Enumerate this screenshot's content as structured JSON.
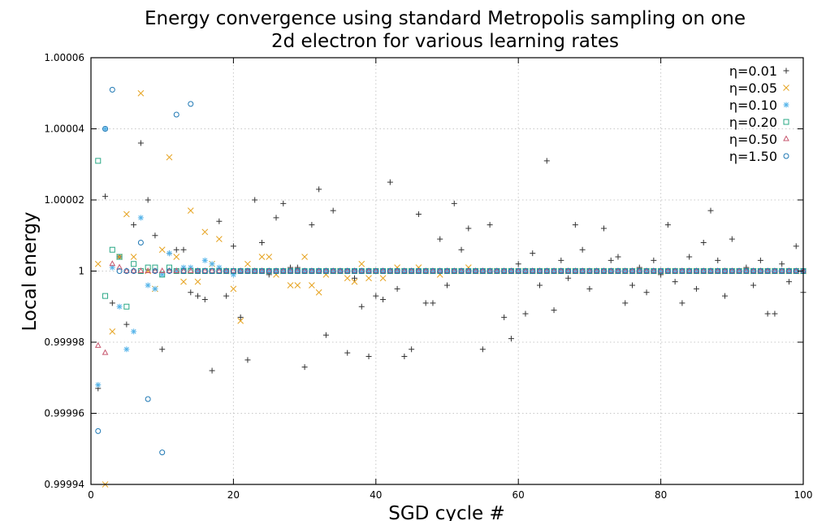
{
  "chart_data": {
    "type": "scatter",
    "title_lines": [
      "Energy convergence using standard Metropolis sampling on one",
      "2d electron for various learning rates"
    ],
    "xlabel": "SGD cycle #",
    "ylabel": "Local energy",
    "xlim": [
      0,
      100
    ],
    "ylim": [
      0.99994,
      1.00006
    ],
    "xticks": [
      0,
      20,
      40,
      60,
      80,
      100
    ],
    "xtick_labels": [
      "0",
      "20",
      "40",
      "60",
      "80",
      "100"
    ],
    "yticks": [
      0.99994,
      0.99996,
      0.99998,
      1.0,
      1.00002,
      1.00004,
      1.00006
    ],
    "ytick_labels": [
      "0.99994",
      "0.99996",
      "0.99998",
      "1",
      "1.00002",
      "1.00004",
      "1.00006"
    ],
    "grid": true,
    "legend_position": "top-right",
    "series": [
      {
        "name": "η=0.01",
        "marker": "plus",
        "color": "#333333",
        "x": [
          1,
          2,
          3,
          4,
          5,
          6,
          7,
          8,
          9,
          10,
          11,
          12,
          13,
          14,
          15,
          16,
          17,
          18,
          19,
          20,
          21,
          22,
          23,
          24,
          25,
          26,
          27,
          28,
          29,
          30,
          31,
          32,
          33,
          34,
          35,
          36,
          37,
          38,
          39,
          40,
          41,
          42,
          43,
          44,
          45,
          46,
          47,
          48,
          49,
          50,
          51,
          52,
          53,
          54,
          55,
          56,
          57,
          58,
          59,
          60,
          61,
          62,
          63,
          64,
          65,
          66,
          67,
          68,
          69,
          70,
          71,
          72,
          73,
          74,
          75,
          76,
          77,
          78,
          79,
          80,
          81,
          82,
          83,
          84,
          85,
          86,
          87,
          88,
          89,
          90,
          91,
          92,
          93,
          94,
          95,
          96,
          97,
          98,
          99,
          100
        ],
        "y": [
          0.999967,
          1.000021,
          0.999991,
          1.000004,
          0.999985,
          1.000013,
          1.000036,
          1.00002,
          1.00001,
          0.999978,
          1.000005,
          1.000006,
          1.000006,
          0.999994,
          0.999993,
          0.999992,
          0.999972,
          1.000014,
          0.999993,
          1.000007,
          0.999987,
          0.999975,
          1.00002,
          1.000008,
          0.999999,
          1.000015,
          1.000019,
          1.000001,
          1.000001,
          0.999973,
          1.000013,
          1.000023,
          0.999982,
          1.000017,
          1.0,
          0.999977,
          0.999998,
          0.99999,
          0.999976,
          0.999993,
          0.999992,
          1.000025,
          0.999995,
          0.999976,
          0.999978,
          1.000016,
          0.999991,
          0.999991,
          1.000009,
          0.999996,
          1.000019,
          1.000006,
          1.000012,
          1.0,
          0.999978,
          1.000013,
          1.0,
          0.999987,
          0.999981,
          1.000002,
          0.999988,
          1.000005,
          0.999996,
          1.000031,
          0.999989,
          1.000003,
          0.999998,
          1.000013,
          1.000006,
          0.999995,
          1.0,
          1.000012,
          1.000003,
          1.000004,
          0.999991,
          0.999996,
          1.000001,
          0.999994,
          1.000003,
          0.999999,
          1.000013,
          0.999997,
          0.999991,
          1.000004,
          0.999995,
          1.000008,
          1.000017,
          1.000003,
          0.999993,
          1.000009,
          1.0,
          1.000001,
          0.999996,
          1.000003,
          0.999988,
          0.999988,
          1.000002,
          0.999997,
          1.000007,
          0.999994
        ]
      },
      {
        "name": "η=0.05",
        "marker": "cross",
        "color": "#e6a321",
        "x": [
          1,
          2,
          3,
          4,
          5,
          6,
          7,
          8,
          9,
          10,
          11,
          12,
          13,
          14,
          15,
          16,
          17,
          18,
          19,
          20,
          21,
          22,
          23,
          24,
          25,
          26,
          27,
          28,
          29,
          30,
          31,
          32,
          33,
          34,
          35,
          36,
          37,
          38,
          39,
          40,
          41,
          42,
          43,
          44,
          45,
          46,
          47,
          48,
          49,
          50,
          51,
          52,
          53,
          54,
          55,
          56,
          57,
          58,
          59,
          60,
          61,
          62,
          63,
          64,
          65,
          66,
          67,
          68,
          69,
          70,
          71,
          72,
          73,
          74,
          75,
          76,
          77,
          78,
          79,
          80,
          81,
          82,
          83,
          84,
          85,
          86,
          87,
          88,
          89,
          90,
          91,
          92,
          93,
          94,
          95,
          96,
          97,
          98,
          99,
          100
        ],
        "y": [
          1.000002,
          0.99994,
          0.999983,
          1.000004,
          1.000016,
          1.000004,
          1.00005,
          1.0,
          0.999995,
          1.000006,
          1.000032,
          1.000004,
          0.999997,
          1.000017,
          0.999997,
          1.000011,
          1.000002,
          1.000009,
          1.0,
          0.999995,
          0.999986,
          1.000002,
          1.0,
          1.000004,
          1.000004,
          0.999999,
          1.0,
          0.999996,
          0.999996,
          1.000004,
          0.999996,
          0.999994,
          0.999999,
          1.0,
          1.0,
          0.999998,
          0.999997,
          1.000002,
          0.999998,
          1.0,
          0.999998,
          1.0,
          1.000001,
          1.0,
          1.0,
          1.000001,
          1.0,
          1.0,
          0.999999,
          1.0,
          1.0,
          1.0,
          1.000001,
          1.0,
          1.0,
          1.0,
          1.0,
          1.0,
          1.0,
          1.0,
          1.0,
          1.0,
          1.0,
          1.0,
          1.0,
          1.0,
          1.0,
          1.0,
          1.0,
          1.0,
          1.0,
          1.0,
          1.0,
          1.0,
          1.0,
          1.0,
          1.0,
          1.0,
          1.0,
          1.0,
          1.0,
          1.0,
          1.0,
          1.0,
          1.0,
          1.0,
          1.0,
          1.0,
          1.0,
          1.0,
          1.0,
          1.0,
          1.0,
          1.0,
          1.0,
          1.0,
          1.0,
          1.0,
          1.0,
          1.0
        ]
      },
      {
        "name": "η=0.10",
        "marker": "star",
        "color": "#56b4e9",
        "x": [
          1,
          2,
          3,
          4,
          5,
          6,
          7,
          8,
          9,
          10,
          11,
          12,
          13,
          14,
          15,
          16,
          17,
          18,
          19,
          20,
          21,
          22,
          23,
          24,
          25,
          26,
          27,
          28,
          29,
          30,
          31,
          32,
          33,
          34,
          35,
          36,
          37,
          38,
          39,
          40,
          41,
          42,
          43,
          44,
          45,
          46,
          47,
          48,
          49,
          50,
          51,
          52,
          53,
          54,
          55,
          56,
          57,
          58,
          59,
          60,
          61,
          62,
          63,
          64,
          65,
          66,
          67,
          68,
          69,
          70,
          71,
          72,
          73,
          74,
          75,
          76,
          77,
          78,
          79,
          80,
          81,
          82,
          83,
          84,
          85,
          86,
          87,
          88,
          89,
          90,
          91,
          92,
          93,
          94,
          95,
          96,
          97,
          98,
          99,
          100
        ],
        "y": [
          0.999968,
          1.00004,
          1.000001,
          0.99999,
          0.999978,
          0.999983,
          1.000015,
          0.999996,
          0.999995,
          0.999999,
          1.000005,
          1.0,
          1.000001,
          1.000001,
          1.0,
          1.000003,
          1.000002,
          1.000001,
          1.0,
          0.999999,
          1.0,
          1.0,
          1.0,
          1.0,
          1.0,
          1.0,
          1.0,
          1.0,
          1.0,
          1.0,
          1.0,
          1.0,
          1.0,
          1.0,
          1.0,
          1.0,
          1.0,
          1.0,
          1.0,
          1.0,
          1.0,
          1.0,
          1.0,
          1.0,
          1.0,
          1.0,
          1.0,
          1.0,
          1.0,
          1.0,
          1.0,
          1.0,
          1.0,
          1.0,
          1.0,
          1.0,
          1.0,
          1.0,
          1.0,
          1.0,
          1.0,
          1.0,
          1.0,
          1.0,
          1.0,
          1.0,
          1.0,
          1.0,
          1.0,
          1.0,
          1.0,
          1.0,
          1.0,
          1.0,
          1.0,
          1.0,
          1.0,
          1.0,
          1.0,
          1.0,
          1.0,
          1.0,
          1.0,
          1.0,
          1.0,
          1.0,
          1.0,
          1.0,
          1.0,
          1.0,
          1.0,
          1.0,
          1.0,
          1.0,
          1.0,
          1.0,
          1.0,
          1.0,
          1.0,
          1.0
        ]
      },
      {
        "name": "η=0.20",
        "marker": "square",
        "color": "#2aa886",
        "x": [
          1,
          2,
          3,
          4,
          5,
          6,
          7,
          8,
          9,
          10,
          11,
          12,
          13,
          14,
          15,
          16,
          17,
          18,
          19,
          20,
          21,
          22,
          23,
          24,
          25,
          26,
          27,
          28,
          29,
          30,
          31,
          32,
          33,
          34,
          35,
          36,
          37,
          38,
          39,
          40,
          41,
          42,
          43,
          44,
          45,
          46,
          47,
          48,
          49,
          50,
          51,
          52,
          53,
          54,
          55,
          56,
          57,
          58,
          59,
          60,
          61,
          62,
          63,
          64,
          65,
          66,
          67,
          68,
          69,
          70,
          71,
          72,
          73,
          74,
          75,
          76,
          77,
          78,
          79,
          80,
          81,
          82,
          83,
          84,
          85,
          86,
          87,
          88,
          89,
          90,
          91,
          92,
          93,
          94,
          95,
          96,
          97,
          98,
          99,
          100
        ],
        "y": [
          1.000031,
          0.999993,
          1.000006,
          1.000004,
          0.99999,
          1.000002,
          1.0,
          1.000001,
          1.000001,
          0.999999,
          1.000001,
          1.0,
          1.0,
          1.0,
          1.0,
          1.0,
          1.0,
          1.0,
          1.0,
          1.0,
          1.0,
          1.0,
          1.0,
          1.0,
          1.0,
          1.0,
          1.0,
          1.0,
          1.0,
          1.0,
          1.0,
          1.0,
          1.0,
          1.0,
          1.0,
          1.0,
          1.0,
          1.0,
          1.0,
          1.0,
          1.0,
          1.0,
          1.0,
          1.0,
          1.0,
          1.0,
          1.0,
          1.0,
          1.0,
          1.0,
          1.0,
          1.0,
          1.0,
          1.0,
          1.0,
          1.0,
          1.0,
          1.0,
          1.0,
          1.0,
          1.0,
          1.0,
          1.0,
          1.0,
          1.0,
          1.0,
          1.0,
          1.0,
          1.0,
          1.0,
          1.0,
          1.0,
          1.0,
          1.0,
          1.0,
          1.0,
          1.0,
          1.0,
          1.0,
          1.0,
          1.0,
          1.0,
          1.0,
          1.0,
          1.0,
          1.0,
          1.0,
          1.0,
          1.0,
          1.0,
          1.0,
          1.0,
          1.0,
          1.0,
          1.0,
          1.0,
          1.0,
          1.0,
          1.0,
          1.0
        ]
      },
      {
        "name": "η=0.50",
        "marker": "triangle",
        "color": "#c7576f",
        "x": [
          1,
          2,
          3,
          4,
          5,
          6,
          7,
          8,
          9,
          10,
          11,
          12,
          13,
          14,
          15,
          16,
          17,
          18,
          19,
          20,
          21,
          22,
          23,
          24,
          25,
          26,
          27,
          28,
          29,
          30,
          31,
          32,
          33,
          34,
          35,
          36,
          37,
          38,
          39,
          40,
          41,
          42,
          43,
          44,
          45,
          46,
          47,
          48,
          49,
          50,
          51,
          52,
          53,
          54,
          55,
          56,
          57,
          58,
          59,
          60,
          61,
          62,
          63,
          64,
          65,
          66,
          67,
          68,
          69,
          70,
          71,
          72,
          73,
          74,
          75,
          76,
          77,
          78,
          79,
          80,
          81,
          82,
          83,
          84,
          85,
          86,
          87,
          88,
          89,
          90,
          91,
          92,
          93,
          94,
          95,
          96,
          97,
          98,
          99,
          100
        ],
        "y": [
          0.999979,
          0.999977,
          1.000002,
          1.000001,
          1.0,
          1.0,
          1.0,
          1.0,
          1.0,
          1.0,
          1.0,
          1.0,
          1.0,
          1.0,
          1.0,
          1.0,
          1.0,
          1.0,
          1.0,
          1.0,
          1.0,
          1.0,
          1.0,
          1.0,
          1.0,
          1.0,
          1.0,
          1.0,
          1.0,
          1.0,
          1.0,
          1.0,
          1.0,
          1.0,
          1.0,
          1.0,
          1.0,
          1.0,
          1.0,
          1.0,
          1.0,
          1.0,
          1.0,
          1.0,
          1.0,
          1.0,
          1.0,
          1.0,
          1.0,
          1.0,
          1.0,
          1.0,
          1.0,
          1.0,
          1.0,
          1.0,
          1.0,
          1.0,
          1.0,
          1.0,
          1.0,
          1.0,
          1.0,
          1.0,
          1.0,
          1.0,
          1.0,
          1.0,
          1.0,
          1.0,
          1.0,
          1.0,
          1.0,
          1.0,
          1.0,
          1.0,
          1.0,
          1.0,
          1.0,
          1.0,
          1.0,
          1.0,
          1.0,
          1.0,
          1.0,
          1.0,
          1.0,
          1.0,
          1.0,
          1.0,
          1.0,
          1.0,
          1.0,
          1.0,
          1.0,
          1.0,
          1.0,
          1.0,
          1.0,
          1.0
        ]
      },
      {
        "name": "η=1.50",
        "marker": "circle",
        "color": "#1f78b4",
        "x": [
          1,
          2,
          3,
          4,
          5,
          6,
          7,
          8,
          9,
          10,
          11,
          12,
          13,
          14,
          15,
          16,
          17,
          18,
          19,
          20,
          21,
          22,
          23,
          24,
          25,
          26,
          27,
          28,
          29,
          30,
          31,
          32,
          33,
          34,
          35,
          36,
          37,
          38,
          39,
          40,
          41,
          42,
          43,
          44,
          45,
          46,
          47,
          48,
          49,
          50,
          51,
          52,
          53,
          54,
          55,
          56,
          57,
          58,
          59,
          60,
          61,
          62,
          63,
          64,
          65,
          66,
          67,
          68,
          69,
          70,
          71,
          72,
          73,
          74,
          75,
          76,
          77,
          78,
          79,
          80,
          81,
          82,
          83,
          84,
          85,
          86,
          87,
          88,
          89,
          90,
          91,
          92,
          93,
          94,
          95,
          96,
          97,
          98,
          99,
          100
        ],
        "y": [
          0.999955,
          1.00004,
          1.000051,
          1.0,
          1.0,
          1.0,
          1.000008,
          0.999964,
          1.0,
          0.999949,
          1.0,
          1.000044,
          1.0,
          1.000047,
          1.0,
          1.0,
          1.0,
          1.0,
          1.0,
          1.0,
          1.0,
          1.0,
          1.0,
          1.0,
          1.0,
          1.0,
          1.0,
          1.0,
          1.0,
          1.0,
          1.0,
          1.0,
          1.0,
          1.0,
          1.0,
          1.0,
          1.0,
          1.0,
          1.0,
          1.0,
          1.0,
          1.0,
          1.0,
          1.0,
          1.0,
          1.0,
          1.0,
          1.0,
          1.0,
          1.0,
          1.0,
          1.0,
          1.0,
          1.0,
          1.0,
          1.0,
          1.0,
          1.0,
          1.0,
          1.0,
          1.0,
          1.0,
          1.0,
          1.0,
          1.0,
          1.0,
          1.0,
          1.0,
          1.0,
          1.0,
          1.0,
          1.0,
          1.0,
          1.0,
          1.0,
          1.0,
          1.0,
          1.0,
          1.0,
          1.0,
          1.0,
          1.0,
          1.0,
          1.0,
          1.0,
          1.0,
          1.0,
          1.0,
          1.0,
          1.0,
          1.0,
          1.0,
          1.0,
          1.0,
          1.0,
          1.0,
          1.0,
          1.0,
          1.0,
          1.0
        ]
      }
    ]
  }
}
